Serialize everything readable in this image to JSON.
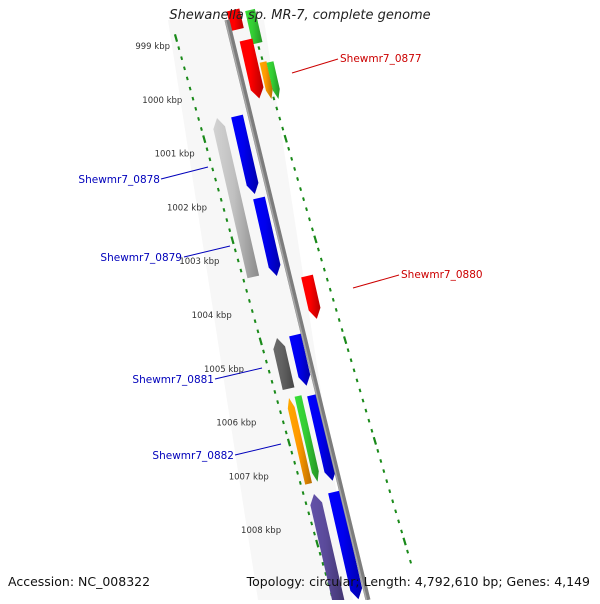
{
  "title": "Shewanella sp. MR-7, complete genome",
  "accession_text": "Accession: NC_008322",
  "summary_text": "Topology: circular; Length: 4,792,610 bp; Genes: 4,149",
  "colors": {
    "backbone": "#8a8a8a",
    "ruler_ticks": "#1a8a1a",
    "label_red": "#cc0000",
    "label_blue": "#0000bb",
    "feature_red": "#ff0000",
    "feature_blue": "#0000ee",
    "feature_green": "#33cc33",
    "feature_orange": "#ff9900",
    "feature_lightgray": "#c0c0c0",
    "feature_darkgray": "#606060",
    "feature_purple": "#5a4a9a"
  },
  "ruler_labels": [
    "999 kbp",
    "1000 kbp",
    "1001 kbp",
    "1002 kbp",
    "1003 kbp",
    "1004 kbp",
    "1005 kbp",
    "1006 kbp",
    "1007 kbp",
    "1008 kbp"
  ],
  "gene_labels": [
    {
      "name": "Shewmr7_0877",
      "strand": "forward"
    },
    {
      "name": "Shewmr7_0878",
      "strand": "reverse"
    },
    {
      "name": "Shewmr7_0879",
      "strand": "reverse"
    },
    {
      "name": "Shewmr7_0880",
      "strand": "forward"
    },
    {
      "name": "Shewmr7_0881",
      "strand": "reverse"
    },
    {
      "name": "Shewmr7_0882",
      "strand": "reverse"
    }
  ],
  "features": [
    {
      "name": "feature-red-outer-top",
      "color": "red"
    },
    {
      "name": "feature-green-outer-top",
      "color": "green"
    },
    {
      "name": "feature-red-outer-0877",
      "color": "red"
    },
    {
      "name": "feature-orange-outer-0877",
      "color": "orange"
    },
    {
      "name": "feature-green-outer-0877",
      "color": "green"
    },
    {
      "name": "feature-lightgray-0878",
      "color": "lightgray"
    },
    {
      "name": "feature-blue-0878",
      "color": "blue"
    },
    {
      "name": "feature-blue-0879",
      "color": "blue"
    },
    {
      "name": "feature-red-0880",
      "color": "red"
    },
    {
      "name": "feature-darkgray-0881",
      "color": "darkgray"
    },
    {
      "name": "feature-blue-0881",
      "color": "blue"
    },
    {
      "name": "feature-orange-0882",
      "color": "orange"
    },
    {
      "name": "feature-green-0882",
      "color": "green"
    },
    {
      "name": "feature-blue-0882",
      "color": "blue"
    },
    {
      "name": "feature-purple-bottom",
      "color": "purple"
    },
    {
      "name": "feature-blue-bottom",
      "color": "blue"
    }
  ]
}
